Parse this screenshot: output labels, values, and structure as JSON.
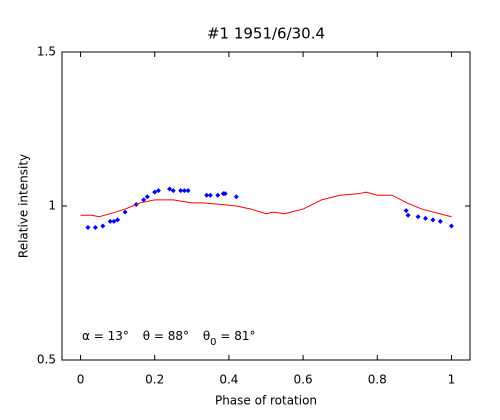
{
  "chart_data": {
    "type": "scatter-line",
    "title": "#1    1951/6/30.4",
    "xlabel": "Phase of rotation",
    "ylabel": "Relative intensity",
    "annotation": [
      "α = 13°",
      "θ = 88°",
      "θ",
      "0",
      " = 81°"
    ],
    "xlim": [
      -0.05,
      1.05
    ],
    "ylim": [
      0.5,
      1.5
    ],
    "xticks": [
      0,
      0.2,
      0.4,
      0.6,
      0.8,
      1
    ],
    "yticks": [
      0.5,
      1,
      1.5
    ],
    "series": [
      {
        "kind": "scatter",
        "color": "#0000ff",
        "x": [
          0.02,
          0.04,
          0.06,
          0.08,
          0.09,
          0.1,
          0.12,
          0.15,
          0.17,
          0.18,
          0.2,
          0.21,
          0.24,
          0.25,
          0.27,
          0.28,
          0.29,
          0.34,
          0.35,
          0.37,
          0.385,
          0.39,
          0.42,
          0.878,
          0.883,
          0.91,
          0.93,
          0.95,
          0.97,
          1.0
        ],
        "values": [
          0.93,
          0.93,
          0.935,
          0.95,
          0.95,
          0.955,
          0.98,
          1.005,
          1.02,
          1.03,
          1.045,
          1.05,
          1.055,
          1.05,
          1.05,
          1.05,
          1.05,
          1.035,
          1.035,
          1.035,
          1.04,
          1.04,
          1.03,
          0.985,
          0.97,
          0.965,
          0.96,
          0.955,
          0.95,
          0.935
        ]
      },
      {
        "kind": "line",
        "color": "#ff0000",
        "x": [
          0,
          0.03,
          0.05,
          0.08,
          0.12,
          0.16,
          0.2,
          0.25,
          0.3,
          0.33,
          0.38,
          0.42,
          0.46,
          0.5,
          0.52,
          0.55,
          0.6,
          0.65,
          0.7,
          0.75,
          0.77,
          0.8,
          0.84,
          0.88,
          0.92,
          1.0
        ],
        "values": [
          0.97,
          0.97,
          0.965,
          0.975,
          0.99,
          1.01,
          1.02,
          1.02,
          1.01,
          1.01,
          1.005,
          1.0,
          0.99,
          0.975,
          0.98,
          0.975,
          0.99,
          1.02,
          1.035,
          1.04,
          1.045,
          1.035,
          1.035,
          1.01,
          0.99,
          0.965
        ]
      }
    ]
  }
}
